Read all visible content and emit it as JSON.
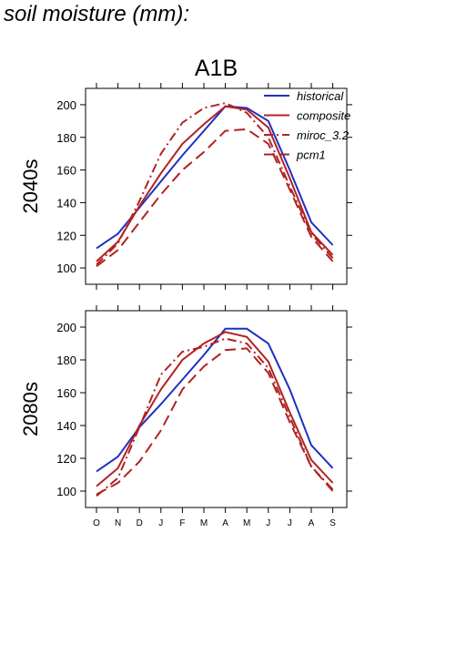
{
  "page": {
    "title": "soil moisture (mm):"
  },
  "legend": {
    "items": [
      {
        "label": "historical",
        "color": "#1f2fc4",
        "dash": "solid"
      },
      {
        "label": "composite",
        "color": "#b22222",
        "dash": "solid"
      },
      {
        "label": "miroc_3.2",
        "color": "#b22222",
        "dash": "dashdot"
      },
      {
        "label": "pcm1",
        "color": "#b22222",
        "dash": "longdash"
      }
    ]
  },
  "chart_data": [
    {
      "type": "line",
      "title": "A1B",
      "ylabel": "2040s",
      "categories": [
        "O",
        "N",
        "D",
        "J",
        "F",
        "M",
        "A",
        "M",
        "J",
        "J",
        "A",
        "S"
      ],
      "yticks": [
        100,
        120,
        140,
        160,
        180,
        200
      ],
      "ylim": [
        90,
        210
      ],
      "series": [
        {
          "name": "historical",
          "color": "#1f2fc4",
          "dash": "solid",
          "values": [
            112,
            121,
            137,
            153,
            169,
            184,
            199,
            198,
            190,
            160,
            128,
            114
          ]
        },
        {
          "name": "composite",
          "color": "#b22222",
          "dash": "solid",
          "values": [
            104,
            116,
            138,
            158,
            176,
            188,
            199,
            197,
            186,
            155,
            122,
            108
          ]
        },
        {
          "name": "miroc_3.2",
          "color": "#b22222",
          "dash": "dashdot",
          "values": [
            102,
            115,
            141,
            170,
            189,
            198,
            201,
            195,
            180,
            150,
            121,
            106
          ]
        },
        {
          "name": "pcm1",
          "color": "#b22222",
          "dash": "longdash",
          "values": [
            101,
            111,
            128,
            145,
            160,
            171,
            184,
            185,
            176,
            148,
            119,
            104
          ]
        }
      ]
    },
    {
      "type": "line",
      "title": "",
      "ylabel": "2080s",
      "categories": [
        "O",
        "N",
        "D",
        "J",
        "F",
        "M",
        "A",
        "M",
        "J",
        "J",
        "A",
        "S"
      ],
      "yticks": [
        100,
        120,
        140,
        160,
        180,
        200
      ],
      "ylim": [
        90,
        210
      ],
      "series": [
        {
          "name": "historical",
          "color": "#1f2fc4",
          "dash": "solid",
          "values": [
            112,
            121,
            139,
            153,
            168,
            183,
            199,
            199,
            190,
            162,
            128,
            114
          ]
        },
        {
          "name": "composite",
          "color": "#b22222",
          "dash": "solid",
          "values": [
            103,
            114,
            140,
            162,
            180,
            190,
            197,
            194,
            179,
            148,
            119,
            105
          ]
        },
        {
          "name": "miroc_3.2",
          "color": "#b22222",
          "dash": "dashdot",
          "values": [
            97,
            108,
            139,
            171,
            185,
            188,
            193,
            190,
            175,
            145,
            115,
            101
          ]
        },
        {
          "name": "pcm1",
          "color": "#b22222",
          "dash": "longdash",
          "values": [
            98,
            105,
            118,
            137,
            162,
            176,
            186,
            187,
            172,
            142,
            115,
            100
          ]
        }
      ]
    }
  ]
}
